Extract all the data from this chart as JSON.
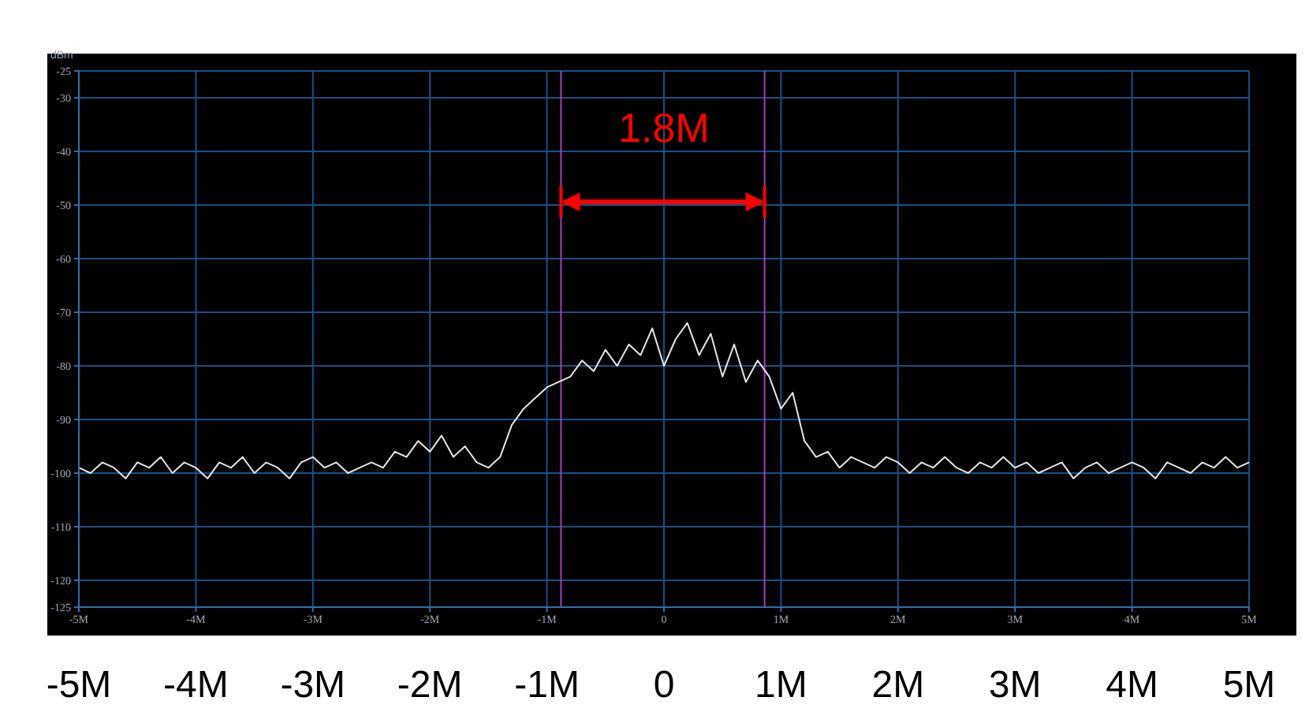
{
  "chart_data": {
    "type": "line",
    "ylabel": "dBm",
    "x": [
      -5.0,
      -4.9,
      -4.8,
      -4.7,
      -4.6,
      -4.5,
      -4.4,
      -4.3,
      -4.2,
      -4.1,
      -4.0,
      -3.9,
      -3.8,
      -3.7,
      -3.6,
      -3.5,
      -3.4,
      -3.3,
      -3.2,
      -3.1,
      -3.0,
      -2.9,
      -2.8,
      -2.7,
      -2.6,
      -2.5,
      -2.4,
      -2.3,
      -2.2,
      -2.1,
      -2.0,
      -1.9,
      -1.8,
      -1.7,
      -1.6,
      -1.5,
      -1.4,
      -1.3,
      -1.2,
      -1.1,
      -1.0,
      -0.9,
      -0.8,
      -0.7,
      -0.6,
      -0.5,
      -0.4,
      -0.3,
      -0.2,
      -0.1,
      0.0,
      0.1,
      0.2,
      0.3,
      0.4,
      0.5,
      0.6,
      0.7,
      0.8,
      0.9,
      1.0,
      1.1,
      1.2,
      1.3,
      1.4,
      1.5,
      1.6,
      1.7,
      1.8,
      1.9,
      2.0,
      2.1,
      2.2,
      2.3,
      2.4,
      2.5,
      2.6,
      2.7,
      2.8,
      2.9,
      3.0,
      3.1,
      3.2,
      3.3,
      3.4,
      3.5,
      3.6,
      3.7,
      3.8,
      3.9,
      4.0,
      4.1,
      4.2,
      4.3,
      4.4,
      4.5,
      4.6,
      4.7,
      4.8,
      4.9,
      5.0
    ],
    "series": [
      {
        "color": "#e6e6e6",
        "values": [
          -99,
          -100,
          -98,
          -99,
          -101,
          -98,
          -99,
          -97,
          -100,
          -98,
          -99,
          -101,
          -98,
          -99,
          -97,
          -100,
          -98,
          -99,
          -101,
          -98,
          -97,
          -99,
          -98,
          -100,
          -99,
          -98,
          -99,
          -96,
          -97,
          -94,
          -96,
          -93,
          -97,
          -95,
          -98,
          -99,
          -97,
          -91,
          -88,
          -86,
          -84,
          -83,
          -82,
          -79,
          -81,
          -77,
          -80,
          -76,
          -78,
          -73,
          -80,
          -75,
          -72,
          -78,
          -74,
          -82,
          -76,
          -83,
          -79,
          -82,
          -88,
          -85,
          -94,
          -97,
          -96,
          -99,
          -97,
          -98,
          -99,
          -97,
          -98,
          -100,
          -98,
          -99,
          -97,
          -99,
          -100,
          -98,
          -99,
          -97,
          -99,
          -98,
          -100,
          -99,
          -98,
          -101,
          -99,
          -98,
          -100,
          -99,
          -98,
          -99,
          -101,
          -98,
          -99,
          -100,
          -98,
          -99,
          -97,
          -99,
          -98
        ]
      }
    ],
    "xlim": [
      -5,
      5
    ],
    "xticks": [
      {
        "value": -5,
        "label": "-5M"
      },
      {
        "value": -4,
        "label": "-4M"
      },
      {
        "value": -3,
        "label": "-3M"
      },
      {
        "value": -2,
        "label": "-2M"
      },
      {
        "value": -1,
        "label": "-1M"
      },
      0,
      {
        "value": 1,
        "label": "1M"
      },
      {
        "value": 2,
        "label": "2M"
      },
      {
        "value": 3,
        "label": "3M"
      },
      {
        "value": 4,
        "label": "4M"
      },
      {
        "value": 5,
        "label": "5M"
      }
    ],
    "x2lim": [
      -5,
      5
    ],
    "x2ticks": [
      {
        "value": -5,
        "label": "-5M"
      },
      {
        "value": -4,
        "label": "-4M"
      },
      {
        "value": -3,
        "label": "-3M"
      },
      {
        "value": -2,
        "label": "-2M"
      },
      {
        "value": -1,
        "label": "-1M"
      },
      0,
      {
        "value": 1,
        "label": "1M"
      },
      {
        "value": 2,
        "label": "2M"
      },
      {
        "value": 3,
        "label": "3M"
      },
      {
        "value": 4,
        "label": "4M"
      },
      {
        "value": 5,
        "label": "5M"
      }
    ],
    "ylim": [
      -125,
      -25
    ],
    "yticks": [
      -125,
      -120,
      -110,
      -100,
      -90,
      -80,
      -70,
      -60,
      -50,
      -40,
      -30,
      -25
    ],
    "grid": true,
    "marker": "none",
    "line_style": "solid",
    "ref_lines": [
      {
        "axis": "x",
        "value": -0.88,
        "color": "#a040c0"
      },
      {
        "axis": "x",
        "value": 0.86,
        "color": "#a040c0"
      }
    ],
    "annotations": [
      "1.8M"
    ]
  }
}
